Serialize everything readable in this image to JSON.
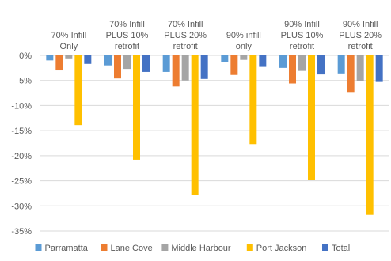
{
  "chart_data": {
    "type": "bar",
    "categories": [
      [
        "70% Infill",
        "Only"
      ],
      [
        "70% Infill",
        "PLUS 10%",
        "retrofit"
      ],
      [
        "70% Infill",
        "PLUS 20%",
        "retrofit"
      ],
      [
        "90% infill",
        "only"
      ],
      [
        "90% Infill",
        "PLUS 10%",
        "retrofit"
      ],
      [
        "90% Infill",
        "PLUS 20%",
        "retrofit"
      ]
    ],
    "series": [
      {
        "name": "Parramatta",
        "color": "#5B9BD5",
        "values": [
          -1.0,
          -2.0,
          -3.3,
          -1.3,
          -2.5,
          -3.6
        ]
      },
      {
        "name": "Lane Cove",
        "color": "#ED7D31",
        "values": [
          -3.0,
          -4.6,
          -6.2,
          -3.9,
          -5.6,
          -7.3
        ]
      },
      {
        "name": "Middle Harbour",
        "color": "#A5A5A5",
        "values": [
          -0.6,
          -2.7,
          -5.0,
          -0.9,
          -3.1,
          -5.1
        ]
      },
      {
        "name": "Port Jackson",
        "color": "#FFC000",
        "values": [
          -13.9,
          -20.8,
          -27.8,
          -17.7,
          -24.8,
          -31.8
        ]
      },
      {
        "name": "Total",
        "color": "#4472C4",
        "values": [
          -1.7,
          -3.3,
          -4.7,
          -2.3,
          -3.8,
          -5.3
        ]
      }
    ],
    "ylim": [
      -35,
      0
    ],
    "yticks": [
      0,
      -5,
      -10,
      -15,
      -20,
      -25,
      -30,
      -35
    ],
    "ytick_labels": [
      "0%",
      "-5%",
      "-10%",
      "-15%",
      "-20%",
      "-25%",
      "-30%",
      "-35%"
    ],
    "grid": true,
    "legend_position": "bottom",
    "title": "",
    "xlabel": "",
    "ylabel": ""
  }
}
